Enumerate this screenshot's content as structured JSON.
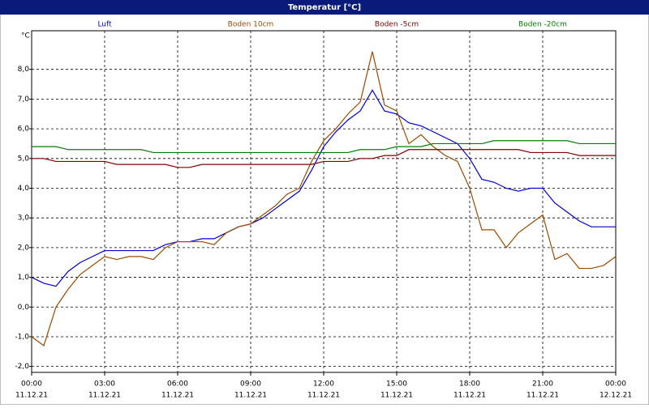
{
  "chart_data": {
    "type": "line",
    "title": "Temperatur [°C]",
    "y_unit": "°C",
    "x": [
      0,
      0.5,
      1,
      1.5,
      2,
      2.5,
      3,
      3.5,
      4,
      4.5,
      5,
      5.5,
      6,
      6.5,
      7,
      7.5,
      8,
      8.5,
      9,
      9.5,
      10,
      10.5,
      11,
      11.5,
      12,
      12.5,
      13,
      13.5,
      14,
      14.5,
      15,
      15.5,
      16,
      16.5,
      17,
      17.5,
      18,
      18.5,
      19,
      19.5,
      20,
      20.5,
      21,
      21.5,
      22,
      22.5,
      23,
      23.5,
      24
    ],
    "series": [
      {
        "name": "Luft",
        "color": "#0000cc",
        "values": [
          1.0,
          0.8,
          0.7,
          1.2,
          1.5,
          1.7,
          1.9,
          1.9,
          1.9,
          1.9,
          1.9,
          2.1,
          2.2,
          2.2,
          2.3,
          2.3,
          2.5,
          2.7,
          2.8,
          3.0,
          3.3,
          3.6,
          3.9,
          4.6,
          5.4,
          5.9,
          6.3,
          6.6,
          7.3,
          6.6,
          6.5,
          6.2,
          6.1,
          5.9,
          5.7,
          5.5,
          5.0,
          4.3,
          4.2,
          4.0,
          3.9,
          4.0,
          4.0,
          3.5,
          3.2,
          2.9,
          2.7,
          2.7,
          2.7
        ]
      },
      {
        "name": "Boden 10cm",
        "color": "#9c4a00",
        "values": [
          -1.0,
          -1.3,
          0.0,
          0.6,
          1.1,
          1.4,
          1.7,
          1.6,
          1.7,
          1.7,
          1.6,
          2.0,
          2.2,
          2.2,
          2.2,
          2.1,
          2.5,
          2.7,
          2.8,
          3.1,
          3.4,
          3.8,
          4.0,
          4.9,
          5.6,
          6.0,
          6.5,
          6.9,
          8.6,
          6.8,
          6.6,
          5.5,
          5.8,
          5.4,
          5.1,
          4.9,
          4.0,
          2.6,
          2.6,
          2.0,
          2.5,
          2.8,
          3.1,
          1.6,
          1.8,
          1.3,
          1.3,
          1.4,
          1.7
        ]
      },
      {
        "name": "Boden -5cm",
        "color": "#800000",
        "values": [
          5.0,
          5.0,
          4.9,
          4.9,
          4.9,
          4.9,
          4.9,
          4.8,
          4.8,
          4.8,
          4.8,
          4.8,
          4.7,
          4.7,
          4.8,
          4.8,
          4.8,
          4.8,
          4.8,
          4.8,
          4.8,
          4.8,
          4.8,
          4.8,
          4.9,
          4.9,
          4.9,
          5.0,
          5.0,
          5.1,
          5.1,
          5.3,
          5.3,
          5.3,
          5.3,
          5.3,
          5.3,
          5.3,
          5.3,
          5.3,
          5.3,
          5.2,
          5.2,
          5.2,
          5.2,
          5.1,
          5.1,
          5.1,
          5.1
        ]
      },
      {
        "name": "Boden -20cm",
        "color": "#008000",
        "values": [
          5.4,
          5.4,
          5.4,
          5.3,
          5.3,
          5.3,
          5.3,
          5.3,
          5.3,
          5.3,
          5.2,
          5.2,
          5.2,
          5.2,
          5.2,
          5.2,
          5.2,
          5.2,
          5.2,
          5.2,
          5.2,
          5.2,
          5.2,
          5.2,
          5.2,
          5.2,
          5.2,
          5.3,
          5.3,
          5.3,
          5.4,
          5.4,
          5.4,
          5.5,
          5.5,
          5.5,
          5.5,
          5.5,
          5.6,
          5.6,
          5.6,
          5.6,
          5.6,
          5.6,
          5.6,
          5.5,
          5.5,
          5.5,
          5.5
        ]
      }
    ],
    "xlim": [
      0,
      24
    ],
    "xticks": [
      {
        "value": 0,
        "label": "00:00"
      },
      {
        "value": 3,
        "label": "03:00"
      },
      {
        "value": 6,
        "label": "06:00"
      },
      {
        "value": 9,
        "label": "09:00"
      },
      {
        "value": 12,
        "label": "12:00"
      },
      {
        "value": 15,
        "label": "15:00"
      },
      {
        "value": 18,
        "label": "18:00"
      },
      {
        "value": 21,
        "label": "21:00"
      },
      {
        "value": 24,
        "label": "00:00"
      }
    ],
    "xtick_dates": [
      "11.12.21",
      "11.12.21",
      "11.12.21",
      "11.12.21",
      "11.12.21",
      "11.12.21",
      "11.12.21",
      "11.12.21",
      "12.12.21"
    ],
    "ylim": [
      -2.2,
      9.3
    ],
    "yticks": [
      {
        "value": -2,
        "label": "-2,0"
      },
      {
        "value": -1,
        "label": "-1,0"
      },
      {
        "value": 0,
        "label": "0,0"
      },
      {
        "value": 1,
        "label": "1,0"
      },
      {
        "value": 2,
        "label": "2,0"
      },
      {
        "value": 3,
        "label": "3,0"
      },
      {
        "value": 4,
        "label": "4,0"
      },
      {
        "value": 5,
        "label": "5,0"
      },
      {
        "value": 6,
        "label": "6,0"
      },
      {
        "value": 7,
        "label": "7,0"
      },
      {
        "value": 8,
        "label": "8,0"
      }
    ],
    "grid": true
  }
}
